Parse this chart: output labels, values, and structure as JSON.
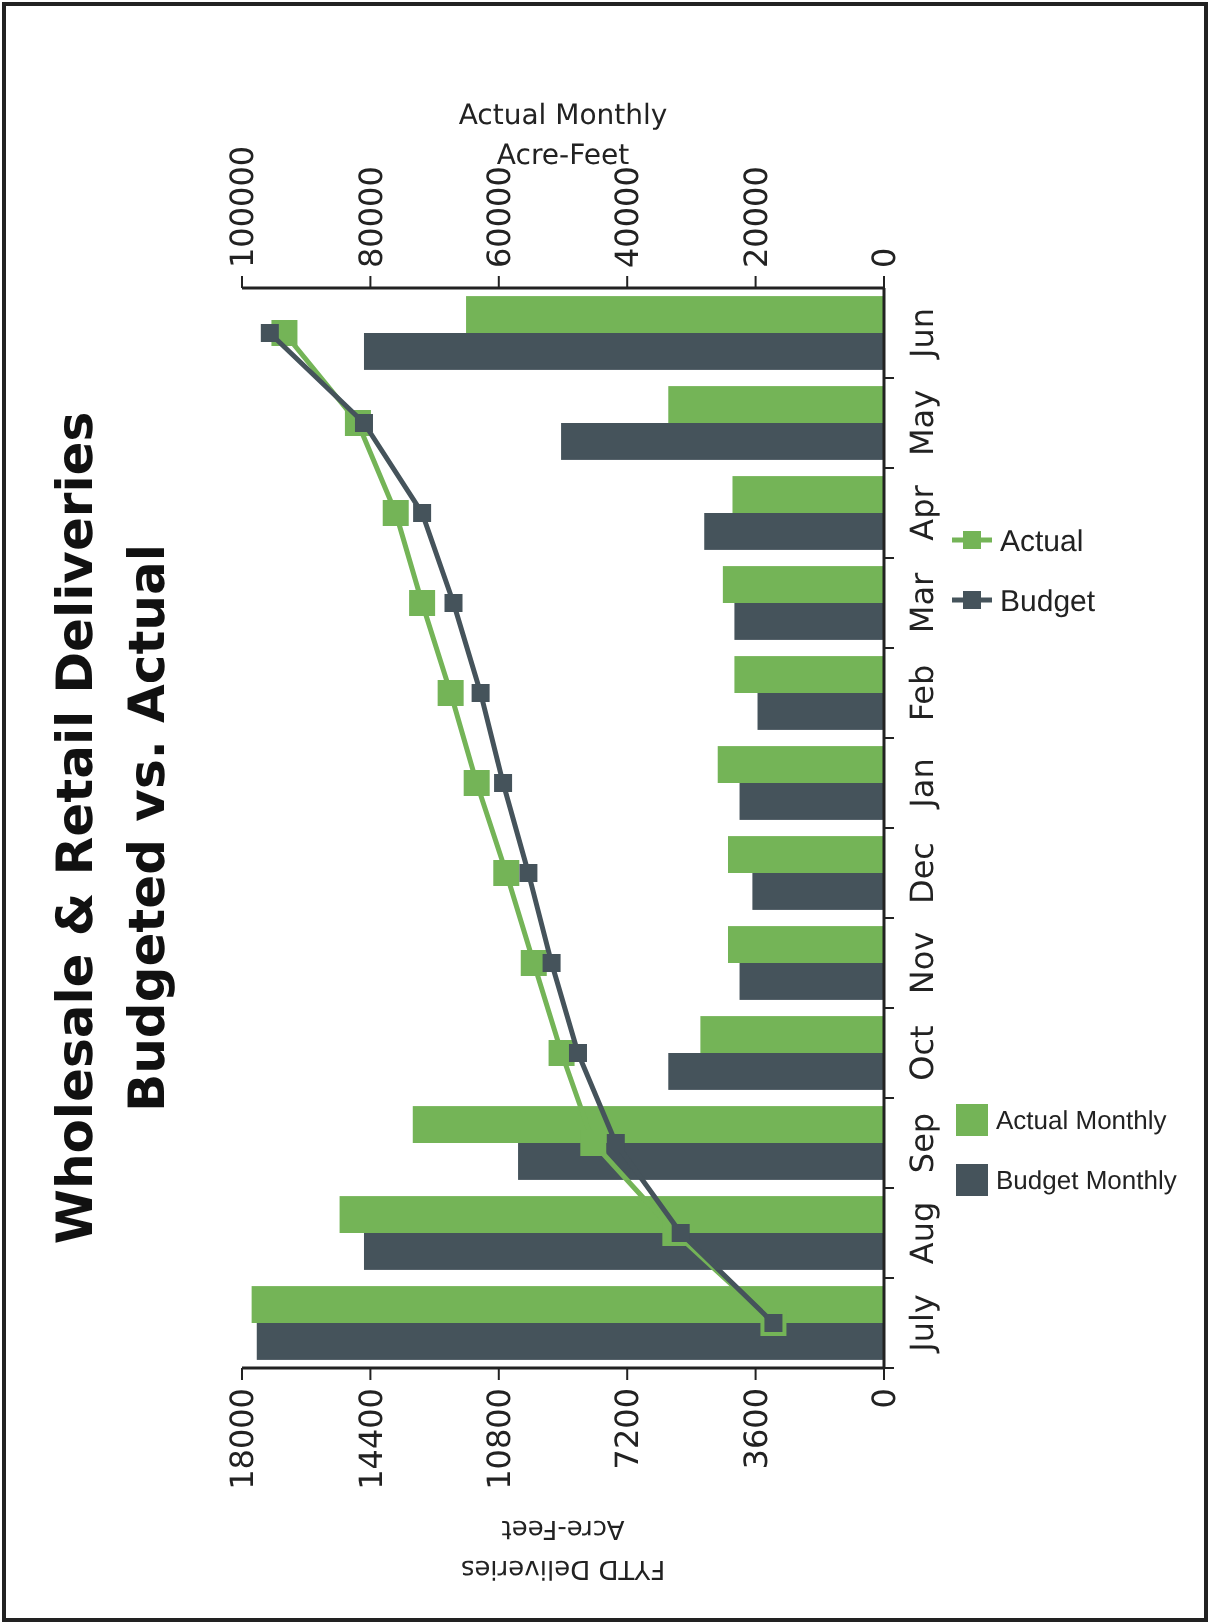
{
  "chart_data": {
    "type": "bar",
    "orientation": "horizontal",
    "title": "Wholesale & Retail Deliveries",
    "subtitle": "Budgeted vs. Actual",
    "xlabel": "FYTD Deliveries\nAcre-Feet",
    "x2label": "Actual Monthly\nAcre-Feet",
    "categories": [
      "Jun",
      "May",
      "Apr",
      "Mar",
      "Feb",
      "Jan",
      "Dec",
      "Nov",
      "Oct",
      "Sep",
      "Aug",
      "July"
    ],
    "series": [
      {
        "name": "Actual Monthly",
        "axis": "x2",
        "color": "#74b457",
        "values": [
          65100,
          33600,
          23600,
          25100,
          23300,
          25900,
          24300,
          24300,
          28600,
          73400,
          84800,
          98500
        ]
      },
      {
        "name": "Budget Monthly",
        "axis": "x2",
        "color": "#45535b",
        "values": [
          81000,
          50300,
          28000,
          23300,
          19700,
          22500,
          20500,
          22500,
          33600,
          57000,
          81000,
          97700
        ]
      },
      {
        "name": "Actual",
        "type": "line",
        "color": "#74b457",
        "values": [
          16810,
          14750,
          13690,
          12950,
          12150,
          11420,
          10590,
          9820,
          9040,
          8150,
          5850,
          3100
        ]
      },
      {
        "name": "Budget",
        "type": "line",
        "color": "#45535b",
        "values": [
          17220,
          14580,
          12950,
          12070,
          11310,
          10680,
          9970,
          9320,
          8580,
          7520,
          5700,
          3100
        ]
      }
    ],
    "xlim": [
      18000,
      0
    ],
    "xticks": [
      0,
      3600,
      7200,
      10800,
      14400,
      18000
    ],
    "x2lim": [
      100000,
      0
    ],
    "x2ticks": [
      0,
      20000,
      40000,
      60000,
      80000,
      100000
    ],
    "grid": false,
    "legend": "right",
    "marker": "square",
    "line_style": "solid"
  }
}
